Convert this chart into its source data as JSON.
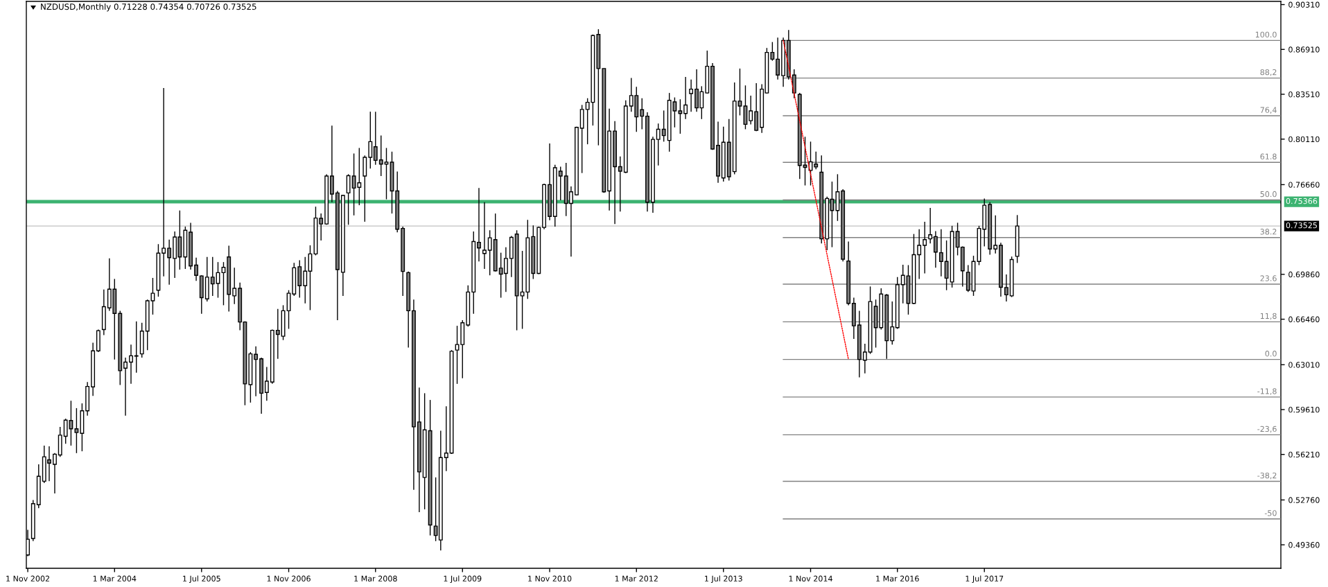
{
  "chart_data": {
    "type": "candlestick",
    "title": "NZDUSD,Monthly 0.71228 0.74354 0.70726 0.73525",
    "x": [
      "2002-11",
      "2002-12",
      "2003-01",
      "2003-02",
      "2003-03",
      "2003-04",
      "2003-05",
      "2003-06",
      "2003-07",
      "2003-08",
      "2003-09",
      "2003-10",
      "2003-11",
      "2003-12",
      "2004-01",
      "2004-02",
      "2004-03",
      "2004-04",
      "2004-05",
      "2004-06",
      "2004-07",
      "2004-08",
      "2004-09",
      "2004-10",
      "2004-11",
      "2004-12",
      "2005-01",
      "2005-02",
      "2005-03",
      "2005-04",
      "2005-05",
      "2005-06",
      "2005-07",
      "2005-08",
      "2005-09",
      "2005-10",
      "2005-11",
      "2005-12",
      "2006-01",
      "2006-02",
      "2006-03",
      "2006-04",
      "2006-05",
      "2006-06",
      "2006-07",
      "2006-08",
      "2006-09",
      "2006-10",
      "2006-11",
      "2006-12",
      "2007-01",
      "2007-02",
      "2007-03",
      "2007-04",
      "2007-05",
      "2007-06",
      "2007-07",
      "2007-08",
      "2007-09",
      "2007-10",
      "2007-11",
      "2007-12",
      "2008-01",
      "2008-02",
      "2008-03",
      "2008-04",
      "2008-05",
      "2008-06",
      "2008-07",
      "2008-08",
      "2008-09",
      "2008-10",
      "2008-11",
      "2008-12",
      "2009-01",
      "2009-02",
      "2009-03",
      "2009-04",
      "2009-05",
      "2009-06",
      "2009-07",
      "2009-08",
      "2009-09",
      "2009-10",
      "2009-11",
      "2009-12",
      "2010-01",
      "2010-02",
      "2010-03",
      "2010-04",
      "2010-05",
      "2010-06",
      "2010-07",
      "2010-08",
      "2010-09",
      "2010-10",
      "2010-11",
      "2010-12",
      "2011-01",
      "2011-02",
      "2011-03",
      "2011-04",
      "2011-05",
      "2011-06",
      "2011-07",
      "2011-08",
      "2011-09",
      "2011-10",
      "2011-11",
      "2011-12",
      "2012-01",
      "2012-02",
      "2012-03",
      "2012-04",
      "2012-05",
      "2012-06",
      "2012-07",
      "2012-08",
      "2012-09",
      "2012-10",
      "2012-11",
      "2012-12",
      "2013-01",
      "2013-02",
      "2013-03",
      "2013-04",
      "2013-05",
      "2013-06",
      "2013-07",
      "2013-08",
      "2013-09",
      "2013-10",
      "2013-11",
      "2013-12",
      "2014-01",
      "2014-02",
      "2014-03",
      "2014-04",
      "2014-05",
      "2014-06",
      "2014-07",
      "2014-08",
      "2014-09",
      "2014-10",
      "2014-11",
      "2014-12",
      "2015-01",
      "2015-02",
      "2015-03",
      "2015-04",
      "2015-05",
      "2015-06",
      "2015-07",
      "2015-08",
      "2015-09",
      "2015-10",
      "2015-11",
      "2015-12",
      "2016-01",
      "2016-02",
      "2016-03",
      "2016-04",
      "2016-05",
      "2016-06",
      "2016-07",
      "2016-08",
      "2016-09",
      "2016-10",
      "2016-11",
      "2016-12",
      "2017-01",
      "2017-02",
      "2017-03",
      "2017-04",
      "2017-05",
      "2017-06",
      "2017-07",
      "2017-08",
      "2017-09",
      "2017-10",
      "2017-11",
      "2017-12",
      "2018-01"
    ],
    "ohlc": [
      [
        0.4859,
        0.5049,
        0.485,
        0.4978
      ],
      [
        0.4984,
        0.5276,
        0.4964,
        0.5248
      ],
      [
        0.524,
        0.5546,
        0.5214,
        0.5455
      ],
      [
        0.5418,
        0.5688,
        0.5404,
        0.5603
      ],
      [
        0.558,
        0.5682,
        0.5418,
        0.5555
      ],
      [
        0.5546,
        0.5631,
        0.5325,
        0.5623
      ],
      [
        0.5617,
        0.583,
        0.5603,
        0.5767
      ],
      [
        0.5759,
        0.5892,
        0.5702,
        0.5881
      ],
      [
        0.5878,
        0.6028,
        0.5688,
        0.5815
      ],
      [
        0.5815,
        0.5972,
        0.5631,
        0.5787
      ],
      [
        0.5781,
        0.6008,
        0.5645,
        0.5952
      ],
      [
        0.5952,
        0.617,
        0.5915,
        0.6136
      ],
      [
        0.6133,
        0.6468,
        0.6065,
        0.6406
      ],
      [
        0.6406,
        0.6568,
        0.6397,
        0.6559
      ],
      [
        0.6568,
        0.6871,
        0.6525,
        0.6741
      ],
      [
        0.6732,
        0.7107,
        0.671,
        0.6874
      ],
      [
        0.6874,
        0.6951,
        0.6341,
        0.669
      ],
      [
        0.669,
        0.671,
        0.6148,
        0.6256
      ],
      [
        0.6275,
        0.6355,
        0.5915,
        0.6321
      ],
      [
        0.6321,
        0.6454,
        0.6156,
        0.6369
      ],
      [
        0.6369,
        0.663,
        0.6241,
        0.6366
      ],
      [
        0.6383,
        0.6619,
        0.6355,
        0.6556
      ],
      [
        0.6556,
        0.6795,
        0.6412,
        0.6786
      ],
      [
        0.6786,
        0.6959,
        0.6681,
        0.6843
      ],
      [
        0.6866,
        0.7215,
        0.6817,
        0.7147
      ],
      [
        0.7147,
        0.8398,
        0.6971,
        0.7184
      ],
      [
        0.7184,
        0.7249,
        0.6908,
        0.7113
      ],
      [
        0.7107,
        0.7311,
        0.6959,
        0.7269
      ],
      [
        0.7269,
        0.747,
        0.7022,
        0.7118
      ],
      [
        0.7118,
        0.7348,
        0.7027,
        0.732
      ],
      [
        0.7306,
        0.7377,
        0.7022,
        0.705
      ],
      [
        0.7056,
        0.7113,
        0.6937,
        0.6979
      ],
      [
        0.6974,
        0.6979,
        0.6687,
        0.6809
      ],
      [
        0.68,
        0.7118,
        0.678,
        0.6965
      ],
      [
        0.6965,
        0.7118,
        0.6823,
        0.6914
      ],
      [
        0.6917,
        0.7079,
        0.6809,
        0.6999
      ],
      [
        0.6999,
        0.7079,
        0.6752,
        0.7039
      ],
      [
        0.7118,
        0.7203,
        0.6704,
        0.6834
      ],
      [
        0.6823,
        0.7036,
        0.6761,
        0.688
      ],
      [
        0.688,
        0.6923,
        0.6562,
        0.6625
      ],
      [
        0.6625,
        0.663,
        0.5994,
        0.6156
      ],
      [
        0.615,
        0.6397,
        0.6014,
        0.6383
      ],
      [
        0.638,
        0.644,
        0.6062,
        0.6341
      ],
      [
        0.6346,
        0.6355,
        0.5929,
        0.6085
      ],
      [
        0.6091,
        0.6284,
        0.6028,
        0.6176
      ],
      [
        0.617,
        0.6568,
        0.6156,
        0.6562
      ],
      [
        0.6562,
        0.6724,
        0.6346,
        0.6531
      ],
      [
        0.6517,
        0.6752,
        0.6488,
        0.671
      ],
      [
        0.671,
        0.6866,
        0.6573,
        0.6843
      ],
      [
        0.6837,
        0.7073,
        0.6823,
        0.7036
      ],
      [
        0.7044,
        0.7093,
        0.6809,
        0.69
      ],
      [
        0.69,
        0.7118,
        0.6766,
        0.701
      ],
      [
        0.701,
        0.7206,
        0.6715,
        0.7141
      ],
      [
        0.7141,
        0.7499,
        0.713,
        0.7413
      ],
      [
        0.7411,
        0.7447,
        0.7243,
        0.7368
      ],
      [
        0.7368,
        0.7745,
        0.7362,
        0.7731
      ],
      [
        0.7731,
        0.8114,
        0.7533,
        0.7595
      ],
      [
        0.7603,
        0.7618,
        0.6639,
        0.7022
      ],
      [
        0.7002,
        0.7589,
        0.6823,
        0.7584
      ],
      [
        0.7603,
        0.7745,
        0.7362,
        0.7734
      ],
      [
        0.7731,
        0.7902,
        0.7433,
        0.764
      ],
      [
        0.7646,
        0.7944,
        0.751,
        0.768
      ],
      [
        0.7731,
        0.7887,
        0.7385,
        0.7873
      ],
      [
        0.7873,
        0.8219,
        0.7788,
        0.7992
      ],
      [
        0.7953,
        0.8219,
        0.7816,
        0.785
      ],
      [
        0.7853,
        0.8038,
        0.7731,
        0.7822
      ],
      [
        0.7822,
        0.7944,
        0.7555,
        0.7836
      ],
      [
        0.7836,
        0.7916,
        0.7447,
        0.7618
      ],
      [
        0.7618,
        0.7765,
        0.7305,
        0.7328
      ],
      [
        0.7334,
        0.7348,
        0.6823,
        0.7008
      ],
      [
        0.6999,
        0.7008,
        0.6431,
        0.671
      ],
      [
        0.671,
        0.6795,
        0.5353,
        0.583
      ],
      [
        0.5867,
        0.6128,
        0.5183,
        0.5489
      ],
      [
        0.5447,
        0.6085,
        0.5205,
        0.5807
      ],
      [
        0.5801,
        0.6034,
        0.5007,
        0.5086
      ],
      [
        0.5078,
        0.5447,
        0.4964,
        0.5007
      ],
      [
        0.4973,
        0.5801,
        0.4893,
        0.5597
      ],
      [
        0.5597,
        0.5986,
        0.5495,
        0.5631
      ],
      [
        0.5631,
        0.6412,
        0.5625,
        0.6403
      ],
      [
        0.6412,
        0.6596,
        0.6156,
        0.6454
      ],
      [
        0.6454,
        0.6639,
        0.6199,
        0.6619
      ],
      [
        0.6602,
        0.6903,
        0.659,
        0.6852
      ],
      [
        0.6852,
        0.7311,
        0.6687,
        0.7235
      ],
      [
        0.7229,
        0.764,
        0.7084,
        0.7186
      ],
      [
        0.7144,
        0.7533,
        0.7027,
        0.7169
      ],
      [
        0.7169,
        0.732,
        0.6979,
        0.7263
      ],
      [
        0.7249,
        0.7447,
        0.7008,
        0.7013
      ],
      [
        0.7033,
        0.715,
        0.6809,
        0.6988
      ],
      [
        0.6993,
        0.7192,
        0.6852,
        0.7107
      ],
      [
        0.7107,
        0.7277,
        0.6965,
        0.7266
      ],
      [
        0.7291,
        0.732,
        0.6562,
        0.6823
      ],
      [
        0.6823,
        0.7164,
        0.6573,
        0.6852
      ],
      [
        0.6852,
        0.7399,
        0.68,
        0.7263
      ],
      [
        0.7272,
        0.7357,
        0.6951,
        0.6993
      ],
      [
        0.6993,
        0.7348,
        0.6988,
        0.7342
      ],
      [
        0.7342,
        0.7674,
        0.7328,
        0.7666
      ],
      [
        0.7666,
        0.7978,
        0.7396,
        0.7425
      ],
      [
        0.7425,
        0.7816,
        0.7348,
        0.7794
      ],
      [
        0.7768,
        0.7802,
        0.7547,
        0.7731
      ],
      [
        0.7731,
        0.7831,
        0.7428,
        0.7524
      ],
      [
        0.7524,
        0.7652,
        0.7121,
        0.7612
      ],
      [
        0.7589,
        0.8106,
        0.7584,
        0.81
      ],
      [
        0.8094,
        0.827,
        0.7754,
        0.8236
      ],
      [
        0.8236,
        0.8321,
        0.7972,
        0.829
      ],
      [
        0.829,
        0.8804,
        0.8114,
        0.8796
      ],
      [
        0.8804,
        0.8844,
        0.7964,
        0.8546
      ],
      [
        0.8546,
        0.8546,
        0.7604,
        0.7612
      ],
      [
        0.7618,
        0.8242,
        0.747,
        0.8072
      ],
      [
        0.8072,
        0.8148,
        0.7368,
        0.7802
      ],
      [
        0.7802,
        0.7879,
        0.7462,
        0.7768
      ],
      [
        0.776,
        0.8305,
        0.7754,
        0.8262
      ],
      [
        0.8262,
        0.8475,
        0.8219,
        0.8341
      ],
      [
        0.8341,
        0.8407,
        0.8066,
        0.818
      ],
      [
        0.8234,
        0.8321,
        0.8086,
        0.8185
      ],
      [
        0.8185,
        0.8214,
        0.7462,
        0.7533
      ],
      [
        0.7533,
        0.8029,
        0.7453,
        0.8009
      ],
      [
        0.8009,
        0.8129,
        0.7811,
        0.8086
      ],
      [
        0.8086,
        0.8228,
        0.7992,
        0.8038
      ],
      [
        0.8001,
        0.8361,
        0.7916,
        0.8305
      ],
      [
        0.8293,
        0.8327,
        0.81,
        0.8225
      ],
      [
        0.8225,
        0.8313,
        0.8052,
        0.8205
      ],
      [
        0.8205,
        0.8483,
        0.8163,
        0.827
      ],
      [
        0.8356,
        0.8463,
        0.8219,
        0.839
      ],
      [
        0.839,
        0.854,
        0.8219,
        0.8248
      ],
      [
        0.8248,
        0.8412,
        0.8163,
        0.837
      ],
      [
        0.8361,
        0.8682,
        0.8356,
        0.8563
      ],
      [
        0.8563,
        0.8588,
        0.793,
        0.7936
      ],
      [
        0.7964,
        0.8143,
        0.768,
        0.7731
      ],
      [
        0.7717,
        0.8106,
        0.7689,
        0.7987
      ],
      [
        0.7987,
        0.8163,
        0.7697,
        0.7726
      ],
      [
        0.7765,
        0.8441,
        0.7745,
        0.8299
      ],
      [
        0.8299,
        0.8546,
        0.8191,
        0.8262
      ],
      [
        0.8262,
        0.8418,
        0.8086,
        0.8123
      ],
      [
        0.8151,
        0.8341,
        0.8123,
        0.8225
      ],
      [
        0.8219,
        0.8435,
        0.8072,
        0.8077
      ],
      [
        0.81,
        0.8427,
        0.8058,
        0.839
      ],
      [
        0.8361,
        0.8702,
        0.8356,
        0.8668
      ],
      [
        0.8668,
        0.8747,
        0.8605,
        0.8617
      ],
      [
        0.8617,
        0.8781,
        0.8463,
        0.8497
      ],
      [
        0.8492,
        0.8781,
        0.8407,
        0.8759
      ],
      [
        0.8759,
        0.8838,
        0.8463,
        0.8483
      ],
      [
        0.8497,
        0.854,
        0.8321,
        0.8361
      ],
      [
        0.835,
        0.8361,
        0.7709,
        0.7811
      ],
      [
        0.7814,
        0.8029,
        0.766,
        0.7797
      ],
      [
        0.7774,
        0.7992,
        0.766,
        0.7839
      ],
      [
        0.7822,
        0.7916,
        0.7782,
        0.78
      ],
      [
        0.776,
        0.7887,
        0.722,
        0.7255
      ],
      [
        0.7255,
        0.7575,
        0.7169,
        0.7561
      ],
      [
        0.7555,
        0.7689,
        0.7192,
        0.747
      ],
      [
        0.747,
        0.7745,
        0.7391,
        0.7612
      ],
      [
        0.7618,
        0.7632,
        0.7084,
        0.7101
      ],
      [
        0.7087,
        0.7235,
        0.6752,
        0.6766
      ],
      [
        0.6766,
        0.6809,
        0.6497,
        0.6596
      ],
      [
        0.6602,
        0.671,
        0.6205,
        0.6341
      ],
      [
        0.6335,
        0.646,
        0.6236,
        0.6397
      ],
      [
        0.6397,
        0.6894,
        0.6383,
        0.678
      ],
      [
        0.6744,
        0.6795,
        0.6431,
        0.6582
      ],
      [
        0.6582,
        0.688,
        0.6568,
        0.6837
      ],
      [
        0.6829,
        0.6837,
        0.6346,
        0.6483
      ],
      [
        0.6483,
        0.678,
        0.6454,
        0.6588
      ],
      [
        0.6582,
        0.6965,
        0.6573,
        0.6908
      ],
      [
        0.6908,
        0.7059,
        0.6766,
        0.6979
      ],
      [
        0.6974,
        0.7056,
        0.6681,
        0.6766
      ],
      [
        0.6766,
        0.7292,
        0.6761,
        0.7135
      ],
      [
        0.7135,
        0.7328,
        0.6951,
        0.7206
      ],
      [
        0.7206,
        0.7385,
        0.6993,
        0.7249
      ],
      [
        0.7255,
        0.749,
        0.722,
        0.7286
      ],
      [
        0.7272,
        0.7314,
        0.7036,
        0.7155
      ],
      [
        0.715,
        0.7328,
        0.6971,
        0.7084
      ],
      [
        0.7084,
        0.7243,
        0.6866,
        0.6957
      ],
      [
        0.6928,
        0.7354,
        0.6886,
        0.7311
      ],
      [
        0.7311,
        0.7377,
        0.713,
        0.7192
      ],
      [
        0.7192,
        0.7198,
        0.6894,
        0.7013
      ],
      [
        0.7002,
        0.7056,
        0.6852,
        0.6866
      ],
      [
        0.686,
        0.7127,
        0.6823,
        0.7084
      ],
      [
        0.7084,
        0.7354,
        0.7056,
        0.7334
      ],
      [
        0.7328,
        0.7561,
        0.7198,
        0.751
      ],
      [
        0.7516,
        0.7533,
        0.7135,
        0.7178
      ],
      [
        0.7178,
        0.7433,
        0.7144,
        0.7206
      ],
      [
        0.7206,
        0.7226,
        0.6817,
        0.6888
      ],
      [
        0.6886,
        0.6985,
        0.678,
        0.6831
      ],
      [
        0.6823,
        0.7121,
        0.6814,
        0.7098
      ],
      [
        0.71228,
        0.74354,
        0.70726,
        0.73525
      ]
    ],
    "colors": [
      "#ffffff",
      "#ffffff",
      "#ffffff",
      "#ffffff",
      "#808080",
      "#ffffff",
      "#ffffff",
      "#ffffff",
      "#808080",
      "#808080",
      "#ffffff",
      "#ffffff",
      "#ffffff",
      "#ffffff",
      "#ffffff",
      "#ffffff",
      "#808080",
      "#808080",
      "#ffffff",
      "#ffffff",
      "#808080",
      "#ffffff",
      "#ffffff",
      "#ffffff",
      "#ffffff",
      "#ffffff",
      "#808080",
      "#ffffff",
      "#808080",
      "#ffffff",
      "#808080",
      "#808080",
      "#808080",
      "#ffffff",
      "#808080",
      "#ffffff",
      "#ffffff",
      "#808080",
      "#ffffff",
      "#808080",
      "#808080",
      "#ffffff",
      "#808080",
      "#808080",
      "#ffffff",
      "#ffffff",
      "#808080",
      "#ffffff",
      "#ffffff",
      "#ffffff",
      "#808080",
      "#ffffff",
      "#ffffff",
      "#ffffff",
      "#808080",
      "#ffffff",
      "#808080",
      "#808080",
      "#ffffff",
      "#ffffff",
      "#808080",
      "#ffffff",
      "#ffffff",
      "#ffffff",
      "#808080",
      "#808080",
      "#ffffff",
      "#808080",
      "#808080",
      "#808080",
      "#808080",
      "#808080",
      "#808080",
      "#ffffff",
      "#808080",
      "#808080",
      "#ffffff",
      "#ffffff",
      "#ffffff",
      "#ffffff",
      "#ffffff",
      "#ffffff",
      "#ffffff",
      "#808080",
      "#ffffff",
      "#ffffff",
      "#808080",
      "#808080",
      "#ffffff",
      "#ffffff",
      "#808080",
      "#ffffff",
      "#ffffff",
      "#808080",
      "#ffffff",
      "#ffffff",
      "#808080",
      "#ffffff",
      "#808080",
      "#808080",
      "#ffffff",
      "#ffffff",
      "#ffffff",
      "#ffffff",
      "#ffffff",
      "#808080",
      "#808080",
      "#ffffff",
      "#808080",
      "#808080",
      "#ffffff",
      "#ffffff",
      "#808080",
      "#808080",
      "#808080",
      "#ffffff",
      "#ffffff",
      "#808080",
      "#ffffff",
      "#808080",
      "#808080",
      "#ffffff",
      "#ffffff",
      "#808080",
      "#ffffff",
      "#ffffff",
      "#808080",
      "#808080",
      "#ffffff",
      "#808080",
      "#ffffff",
      "#808080",
      "#808080",
      "#ffffff",
      "#808080",
      "#ffffff",
      "#ffffff",
      "#808080",
      "#808080",
      "#ffffff",
      "#808080",
      "#808080",
      "#808080",
      "#808080",
      "#ffffff",
      "#808080",
      "#808080",
      "#ffffff",
      "#808080",
      "#ffffff",
      "#808080",
      "#808080",
      "#808080",
      "#808080",
      "#ffffff",
      "#ffffff",
      "#808080",
      "#ffffff",
      "#808080",
      "#ffffff",
      "#ffffff",
      "#ffffff",
      "#808080",
      "#ffffff",
      "#ffffff",
      "#ffffff",
      "#ffffff",
      "#808080",
      "#808080",
      "#808080",
      "#ffffff",
      "#808080",
      "#808080",
      "#808080",
      "#ffffff",
      "#ffffff",
      "#ffffff",
      "#808080",
      "#ffffff",
      "#808080",
      "#808080",
      "#ffffff",
      "#ffffff"
    ],
    "color": "#000000",
    "series": [
      {
        "type": "line",
        "name": "100.0",
        "color": "#808080",
        "x": [
          "2014-06",
          "2022-01-16"
        ],
        "values": [
          0.8759,
          0.8759
        ]
      },
      {
        "type": "line",
        "name": "88,2",
        "color": "#808080",
        "x": [
          "2014-06",
          "2022-01-16"
        ],
        "values": [
          0.8474,
          0.8474
        ]
      },
      {
        "type": "line",
        "name": "76,4",
        "color": "#808080",
        "x": [
          "2014-06",
          "2022-01-16"
        ],
        "values": [
          0.8188,
          0.8188
        ]
      },
      {
        "type": "line",
        "name": "61.8",
        "color": "#808080",
        "x": [
          "2014-06",
          "2022-01-16"
        ],
        "values": [
          0.7835,
          0.7835
        ]
      },
      {
        "type": "line",
        "name": "50.0",
        "color": "#808080",
        "x": [
          "2014-06",
          "2022-01-16"
        ],
        "values": [
          0.755,
          0.755
        ]
      },
      {
        "type": "line",
        "name": "38.2",
        "color": "#808080",
        "x": [
          "2014-06",
          "2022-01-16"
        ],
        "values": [
          0.7265,
          0.7265
        ]
      },
      {
        "type": "line",
        "name": "23.6",
        "color": "#808080",
        "x": [
          "2014-06",
          "2022-01-16"
        ],
        "values": [
          0.6912,
          0.6912
        ]
      },
      {
        "type": "line",
        "name": "11,8",
        "color": "#808080",
        "x": [
          "2014-06",
          "2022-01-16"
        ],
        "values": [
          0.6626,
          0.6626
        ]
      },
      {
        "type": "line",
        "name": "0.0",
        "color": "#808080",
        "x": [
          "2014-06",
          "2022-01-16"
        ],
        "values": [
          0.6341,
          0.6341
        ]
      },
      {
        "type": "line",
        "name": "-11,8",
        "color": "#808080",
        "x": [
          "2014-06",
          "2022-01-16"
        ],
        "values": [
          0.6056,
          0.6056
        ]
      },
      {
        "type": "line",
        "name": "-23,6",
        "color": "#808080",
        "x": [
          "2014-06",
          "2022-01-16"
        ],
        "values": [
          0.577,
          0.577
        ]
      },
      {
        "type": "line",
        "name": "-38,2",
        "color": "#808080",
        "x": [
          "2014-06",
          "2022-01-16"
        ],
        "values": [
          0.5417,
          0.5417
        ]
      },
      {
        "type": "line",
        "name": "-50",
        "color": "#808080",
        "x": [
          "2014-06",
          "2022-01-16"
        ],
        "values": [
          0.5132,
          0.5132
        ]
      },
      {
        "type": "line",
        "color": "#ff0000",
        "line_style": "dotted",
        "x": [
          "2014-06",
          "2015-06"
        ],
        "values": [
          0.8759,
          0.6341
        ]
      }
    ],
    "ref_lines": [
      {
        "axis": "y",
        "value": 0.75366,
        "label": "0.75366",
        "color": "#3cb371"
      },
      {
        "axis": "y",
        "value": 0.73525,
        "label": "0.73525",
        "color": "#c0c0c0"
      }
    ],
    "xlim": [
      "2002-10-24",
      "2022-01-16"
    ],
    "xticks": [
      {
        "value": "2002-11-01",
        "label": "1 Nov 2002"
      },
      {
        "value": "2004-03-01",
        "label": "1 Mar 2004"
      },
      {
        "value": "2005-07-01",
        "label": "1 Jul 2005"
      },
      {
        "value": "2006-11-01",
        "label": "1 Nov 2006"
      },
      {
        "value": "2008-03-01",
        "label": "1 Mar 2008"
      },
      {
        "value": "2009-07-01",
        "label": "1 Jul 2009"
      },
      {
        "value": "2010-11-01",
        "label": "1 Nov 2010"
      },
      {
        "value": "2012-03-01",
        "label": "1 Mar 2012"
      },
      {
        "value": "2013-07-01",
        "label": "1 Jul 2013"
      },
      {
        "value": "2014-11-01",
        "label": "1 Nov 2014"
      },
      {
        "value": "2016-03-01",
        "label": "1 Mar 2016"
      },
      {
        "value": "2017-07-01",
        "label": "1 Jul 2017"
      }
    ],
    "ylim": [
      0.4758,
      0.9055
    ],
    "yticks": [
      {
        "value": 0.9031,
        "label": "0.90310"
      },
      {
        "value": 0.8691,
        "label": "0.86910"
      },
      {
        "value": 0.8351,
        "label": "0.83510"
      },
      {
        "value": 0.8011,
        "label": "0.80110"
      },
      {
        "value": 0.7666,
        "label": "0.76660"
      },
      {
        "value": 0.6986,
        "label": "0.69860"
      },
      {
        "value": 0.6646,
        "label": "0.66460"
      },
      {
        "value": 0.6301,
        "label": "0.63010"
      },
      {
        "value": 0.5961,
        "label": "0.59610"
      },
      {
        "value": 0.5621,
        "label": "0.56210"
      },
      {
        "value": 0.5276,
        "label": "0.52760"
      },
      {
        "value": 0.4936,
        "label": "0.49360"
      }
    ]
  }
}
